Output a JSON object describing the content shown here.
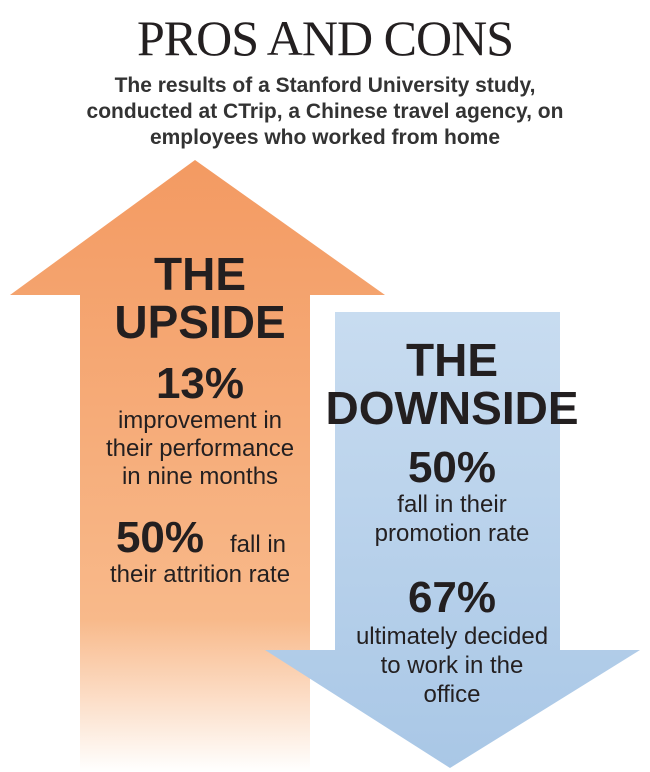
{
  "title": "PROS AND CONS",
  "subtitle": [
    "The results of a Stanford University study,",
    "conducted at CTrip, a Chinese travel agency, on",
    "employees who worked from home"
  ],
  "upside": {
    "heading": [
      "THE",
      "UPSIDE"
    ],
    "items": [
      {
        "figure": "13%",
        "lines": [
          "improvement in",
          "their performance",
          "in nine months"
        ]
      },
      {
        "figure": "50%",
        "lines": [
          "fall in",
          "their attrition rate"
        ]
      }
    ]
  },
  "downside": {
    "heading": [
      "THE",
      "DOWNSIDE"
    ],
    "items": [
      {
        "figure": "50%",
        "lines": [
          "fall in their",
          "promotion rate"
        ]
      },
      {
        "figure": "67%",
        "lines": [
          "ultimately decided",
          "to work in the",
          "office"
        ]
      }
    ]
  }
}
